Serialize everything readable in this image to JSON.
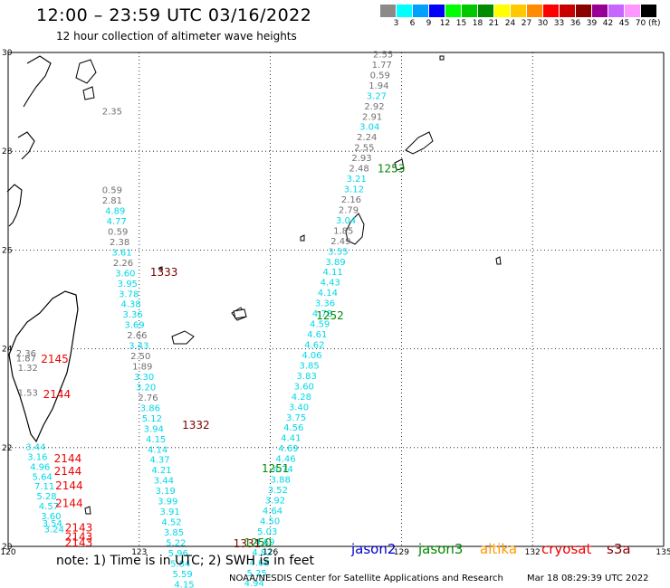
{
  "title": "12:00 – 23:59 UTC 03/16/2022",
  "subtitle": "12 hour collection of altimeter wave heights",
  "scale": {
    "unit": "(ft)",
    "bins": [
      {
        "label": "3",
        "color": "#8a8a8a"
      },
      {
        "label": "6",
        "color": "#00ffff"
      },
      {
        "label": "9",
        "color": "#00a0ff"
      },
      {
        "label": "12",
        "color": "#0000ff"
      },
      {
        "label": "15",
        "color": "#00ff00"
      },
      {
        "label": "18",
        "color": "#00c800"
      },
      {
        "label": "21",
        "color": "#008c00"
      },
      {
        "label": "24",
        "color": "#ffff00"
      },
      {
        "label": "27",
        "color": "#ffc800"
      },
      {
        "label": "30",
        "color": "#ff8c00"
      },
      {
        "label": "33",
        "color": "#ff0000"
      },
      {
        "label": "36",
        "color": "#c80000"
      },
      {
        "label": "39",
        "color": "#8c0000"
      },
      {
        "label": "42",
        "color": "#960096"
      },
      {
        "label": "45",
        "color": "#c864ff"
      },
      {
        "label": "70",
        "color": "#ff96ff"
      },
      {
        "label": "",
        "color": "#000000"
      }
    ]
  },
  "axes": {
    "lon_ticks": [
      "120",
      "123",
      "126",
      "129",
      "132",
      "135"
    ],
    "lat_ticks": [
      "30",
      "28",
      "26",
      "24",
      "22",
      "20"
    ],
    "lon_range": [
      120,
      135
    ],
    "lat_range": [
      20,
      30
    ]
  },
  "colors": {
    "gray": "#707070",
    "cyan": "#00d8e8",
    "red": "#ee0000",
    "darkred": "#7a0000",
    "green": "#008a00"
  },
  "tracks": [
    {
      "name": "west",
      "points": [
        {
          "v": "2.35",
          "lon": 122.15,
          "lat": 28.75,
          "c": "gray"
        },
        {
          "v": "0.59",
          "lon": 122.15,
          "lat": 27.15,
          "c": "gray"
        },
        {
          "v": "2.81",
          "lon": 122.15,
          "lat": 26.94,
          "c": "gray"
        },
        {
          "v": "4.89",
          "lon": 122.22,
          "lat": 26.73,
          "c": "cyan"
        },
        {
          "v": "4.77",
          "lon": 122.25,
          "lat": 26.52,
          "c": "cyan"
        },
        {
          "v": "0.59",
          "lon": 122.28,
          "lat": 26.31,
          "c": "gray"
        },
        {
          "v": "2.38",
          "lon": 122.32,
          "lat": 26.1,
          "c": "gray"
        },
        {
          "v": "3.61",
          "lon": 122.37,
          "lat": 25.89,
          "c": "cyan"
        },
        {
          "v": "2.26",
          "lon": 122.4,
          "lat": 25.68,
          "c": "gray"
        },
        {
          "v": "3.60",
          "lon": 122.45,
          "lat": 25.47,
          "c": "cyan"
        },
        {
          "v": "3.95",
          "lon": 122.5,
          "lat": 25.26,
          "c": "cyan"
        },
        {
          "v": "3.78",
          "lon": 122.53,
          "lat": 25.05,
          "c": "cyan"
        },
        {
          "v": "4.38",
          "lon": 122.58,
          "lat": 24.84,
          "c": "cyan"
        },
        {
          "v": "3.36",
          "lon": 122.62,
          "lat": 24.63,
          "c": "cyan"
        },
        {
          "v": "3.69",
          "lon": 122.66,
          "lat": 24.42,
          "c": "cyan"
        },
        {
          "v": "2.66",
          "lon": 122.72,
          "lat": 24.21,
          "c": "gray"
        },
        {
          "v": "3.43",
          "lon": 122.76,
          "lat": 24.0,
          "c": "cyan"
        },
        {
          "v": "2.50",
          "lon": 122.8,
          "lat": 23.79,
          "c": "gray"
        },
        {
          "v": "1.89",
          "lon": 122.84,
          "lat": 23.58,
          "c": "gray"
        },
        {
          "v": "3.30",
          "lon": 122.88,
          "lat": 23.37,
          "c": "cyan"
        },
        {
          "v": "3.20",
          "lon": 122.92,
          "lat": 23.16,
          "c": "cyan"
        },
        {
          "v": "2.76",
          "lon": 122.97,
          "lat": 22.95,
          "c": "gray"
        },
        {
          "v": "3.86",
          "lon": 123.02,
          "lat": 22.74,
          "c": "cyan"
        },
        {
          "v": "5.12",
          "lon": 123.06,
          "lat": 22.53,
          "c": "cyan"
        },
        {
          "v": "3.94",
          "lon": 123.1,
          "lat": 22.32,
          "c": "cyan"
        },
        {
          "v": "4.15",
          "lon": 123.15,
          "lat": 22.11,
          "c": "cyan"
        },
        {
          "v": "4.14",
          "lon": 123.19,
          "lat": 21.9,
          "c": "cyan"
        },
        {
          "v": "4.37",
          "lon": 123.24,
          "lat": 21.69,
          "c": "cyan"
        },
        {
          "v": "4.21",
          "lon": 123.28,
          "lat": 21.48,
          "c": "cyan"
        },
        {
          "v": "3.44",
          "lon": 123.33,
          "lat": 21.27,
          "c": "cyan"
        },
        {
          "v": "3.19",
          "lon": 123.37,
          "lat": 21.06,
          "c": "cyan"
        },
        {
          "v": "3.99",
          "lon": 123.42,
          "lat": 20.85,
          "c": "cyan"
        },
        {
          "v": "3.91",
          "lon": 123.47,
          "lat": 20.64,
          "c": "cyan"
        },
        {
          "v": "4.52",
          "lon": 123.51,
          "lat": 20.43,
          "c": "cyan"
        },
        {
          "v": "3.85",
          "lon": 123.56,
          "lat": 20.22,
          "c": "cyan"
        },
        {
          "v": "5.22",
          "lon": 123.61,
          "lat": 20.01,
          "c": "cyan"
        },
        {
          "v": "5.96",
          "lon": 123.66,
          "lat": 19.8,
          "c": "cyan"
        },
        {
          "v": "5.84",
          "lon": 123.71,
          "lat": 19.59,
          "c": "cyan"
        },
        {
          "v": "5.59",
          "lon": 123.76,
          "lat": 19.38,
          "c": "cyan"
        },
        {
          "v": "4.15",
          "lon": 123.8,
          "lat": 19.17,
          "c": "cyan"
        }
      ]
    },
    {
      "name": "east",
      "points": [
        {
          "v": "2.55",
          "lon": 128.35,
          "lat": 29.9,
          "c": "gray"
        },
        {
          "v": "1.77",
          "lon": 128.32,
          "lat": 29.69,
          "c": "gray"
        },
        {
          "v": "0.59",
          "lon": 128.28,
          "lat": 29.48,
          "c": "gray"
        },
        {
          "v": "1.94",
          "lon": 128.25,
          "lat": 29.27,
          "c": "gray"
        },
        {
          "v": "3.27",
          "lon": 128.2,
          "lat": 29.06,
          "c": "cyan"
        },
        {
          "v": "2.92",
          "lon": 128.15,
          "lat": 28.85,
          "c": "gray"
        },
        {
          "v": "2.91",
          "lon": 128.1,
          "lat": 28.64,
          "c": "gray"
        },
        {
          "v": "3.04",
          "lon": 128.04,
          "lat": 28.43,
          "c": "cyan"
        },
        {
          "v": "2.24",
          "lon": 127.98,
          "lat": 28.22,
          "c": "gray"
        },
        {
          "v": "2.55",
          "lon": 127.92,
          "lat": 28.01,
          "c": "gray"
        },
        {
          "v": "2.93",
          "lon": 127.86,
          "lat": 27.8,
          "c": "gray"
        },
        {
          "v": "2.48",
          "lon": 127.8,
          "lat": 27.59,
          "c": "gray"
        },
        {
          "v": "3.21",
          "lon": 127.74,
          "lat": 27.38,
          "c": "cyan"
        },
        {
          "v": "3.12",
          "lon": 127.68,
          "lat": 27.17,
          "c": "cyan"
        },
        {
          "v": "2.16",
          "lon": 127.62,
          "lat": 26.96,
          "c": "gray"
        },
        {
          "v": "2.79",
          "lon": 127.56,
          "lat": 26.75,
          "c": "gray"
        },
        {
          "v": "3.04",
          "lon": 127.5,
          "lat": 26.54,
          "c": "cyan"
        },
        {
          "v": "1.85",
          "lon": 127.44,
          "lat": 26.33,
          "c": "gray"
        },
        {
          "v": "2.49",
          "lon": 127.38,
          "lat": 26.12,
          "c": "gray"
        },
        {
          "v": "3.55",
          "lon": 127.32,
          "lat": 25.91,
          "c": "cyan"
        },
        {
          "v": "3.89",
          "lon": 127.26,
          "lat": 25.7,
          "c": "cyan"
        },
        {
          "v": "4.11",
          "lon": 127.2,
          "lat": 25.49,
          "c": "cyan"
        },
        {
          "v": "4.43",
          "lon": 127.14,
          "lat": 25.28,
          "c": "cyan"
        },
        {
          "v": "4.14",
          "lon": 127.08,
          "lat": 25.07,
          "c": "cyan"
        },
        {
          "v": "3.36",
          "lon": 127.02,
          "lat": 24.86,
          "c": "cyan"
        },
        {
          "v": "4.78",
          "lon": 126.96,
          "lat": 24.65,
          "c": "cyan"
        },
        {
          "v": "4.59",
          "lon": 126.9,
          "lat": 24.44,
          "c": "cyan"
        },
        {
          "v": "4.61",
          "lon": 126.84,
          "lat": 24.23,
          "c": "cyan"
        },
        {
          "v": "4.62",
          "lon": 126.78,
          "lat": 24.02,
          "c": "cyan"
        },
        {
          "v": "4.06",
          "lon": 126.72,
          "lat": 23.81,
          "c": "cyan"
        },
        {
          "v": "3.85",
          "lon": 126.66,
          "lat": 23.6,
          "c": "cyan"
        },
        {
          "v": "3.83",
          "lon": 126.6,
          "lat": 23.39,
          "c": "cyan"
        },
        {
          "v": "3.60",
          "lon": 126.54,
          "lat": 23.18,
          "c": "cyan"
        },
        {
          "v": "4.28",
          "lon": 126.48,
          "lat": 22.97,
          "c": "cyan"
        },
        {
          "v": "3.40",
          "lon": 126.42,
          "lat": 22.76,
          "c": "cyan"
        },
        {
          "v": "3.75",
          "lon": 126.36,
          "lat": 22.55,
          "c": "cyan"
        },
        {
          "v": "4.56",
          "lon": 126.3,
          "lat": 22.34,
          "c": "cyan"
        },
        {
          "v": "4.41",
          "lon": 126.24,
          "lat": 22.13,
          "c": "cyan"
        },
        {
          "v": "4.69",
          "lon": 126.18,
          "lat": 21.92,
          "c": "cyan"
        },
        {
          "v": "4.46",
          "lon": 126.12,
          "lat": 21.71,
          "c": "cyan"
        },
        {
          "v": "4.74",
          "lon": 126.06,
          "lat": 21.5,
          "c": "cyan"
        },
        {
          "v": "3.88",
          "lon": 126.0,
          "lat": 21.29,
          "c": "cyan"
        },
        {
          "v": "3.52",
          "lon": 125.94,
          "lat": 21.08,
          "c": "cyan"
        },
        {
          "v": "3.92",
          "lon": 125.88,
          "lat": 20.87,
          "c": "cyan"
        },
        {
          "v": "4.64",
          "lon": 125.82,
          "lat": 20.66,
          "c": "cyan"
        },
        {
          "v": "4.50",
          "lon": 125.76,
          "lat": 20.45,
          "c": "cyan"
        },
        {
          "v": "5.03",
          "lon": 125.7,
          "lat": 20.24,
          "c": "cyan"
        },
        {
          "v": "4.69",
          "lon": 125.64,
          "lat": 20.03,
          "c": "cyan"
        },
        {
          "v": "4.82",
          "lon": 125.58,
          "lat": 19.82,
          "c": "cyan"
        },
        {
          "v": "4.68",
          "lon": 125.52,
          "lat": 19.61,
          "c": "cyan"
        },
        {
          "v": "5.25",
          "lon": 125.46,
          "lat": 19.4,
          "c": "cyan"
        },
        {
          "v": "4.94",
          "lon": 125.4,
          "lat": 19.19,
          "c": "cyan"
        }
      ]
    },
    {
      "name": "taiwan",
      "points": [
        {
          "v": "2.36",
          "lon": 120.18,
          "lat": 23.85,
          "c": "gray"
        },
        {
          "v": "1.87",
          "lon": 120.18,
          "lat": 23.75,
          "c": "gray"
        },
        {
          "v": "1.32",
          "lon": 120.22,
          "lat": 23.55,
          "c": "gray"
        },
        {
          "v": "1.53",
          "lon": 120.22,
          "lat": 23.05,
          "c": "gray"
        },
        {
          "v": "3.44",
          "lon": 120.4,
          "lat": 21.95,
          "c": "cyan"
        },
        {
          "v": "3.16",
          "lon": 120.44,
          "lat": 21.75,
          "c": "cyan"
        },
        {
          "v": "4.96",
          "lon": 120.5,
          "lat": 21.55,
          "c": "cyan"
        },
        {
          "v": "5.64",
          "lon": 120.55,
          "lat": 21.35,
          "c": "cyan"
        },
        {
          "v": "7.11",
          "lon": 120.6,
          "lat": 21.15,
          "c": "cyan"
        },
        {
          "v": "5.28",
          "lon": 120.65,
          "lat": 20.95,
          "c": "cyan"
        },
        {
          "v": "4.57",
          "lon": 120.7,
          "lat": 20.75,
          "c": "cyan"
        },
        {
          "v": "3.60",
          "lon": 120.75,
          "lat": 20.55,
          "c": "cyan"
        },
        {
          "v": "3.54",
          "lon": 120.78,
          "lat": 20.4,
          "c": "cyan"
        },
        {
          "v": "3.24",
          "lon": 120.82,
          "lat": 20.28,
          "c": "cyan"
        }
      ]
    }
  ],
  "ids": [
    {
      "v": "1333",
      "lon": 123.25,
      "lat": 25.48,
      "c": "darkred"
    },
    {
      "v": "2145",
      "lon": 120.75,
      "lat": 23.72,
      "c": "red"
    },
    {
      "v": "2144",
      "lon": 120.8,
      "lat": 23.0,
      "c": "red"
    },
    {
      "v": "1332",
      "lon": 123.98,
      "lat": 22.38,
      "c": "darkred"
    },
    {
      "v": "1253",
      "lon": 128.45,
      "lat": 27.57,
      "c": "green"
    },
    {
      "v": "1252",
      "lon": 127.05,
      "lat": 24.6,
      "c": "green"
    },
    {
      "v": "1251",
      "lon": 125.8,
      "lat": 21.5,
      "c": "green"
    },
    {
      "v": "2144",
      "lon": 121.05,
      "lat": 21.7,
      "c": "red"
    },
    {
      "v": "2144",
      "lon": 121.05,
      "lat": 21.45,
      "c": "red"
    },
    {
      "v": "2144",
      "lon": 121.08,
      "lat": 21.15,
      "c": "red"
    },
    {
      "v": "2144",
      "lon": 121.08,
      "lat": 20.8,
      "c": "red"
    },
    {
      "v": "2143",
      "lon": 121.3,
      "lat": 20.3,
      "c": "red"
    },
    {
      "v": "2143",
      "lon": 121.3,
      "lat": 20.12,
      "c": "red"
    },
    {
      "v": "2143",
      "lon": 121.3,
      "lat": 20.0,
      "c": "red"
    },
    {
      "v": "1331",
      "lon": 125.15,
      "lat": 19.98,
      "c": "darkred"
    },
    {
      "v": "1250",
      "lon": 125.4,
      "lat": 20.0,
      "c": "green"
    }
  ],
  "note": "note:  1) Time is in UTC;  2) SWH is in feet",
  "satellites": [
    {
      "name": "jason2",
      "color": "#0000cc"
    },
    {
      "name": "jason3",
      "color": "#008a00"
    },
    {
      "name": "altika",
      "color": "#ff9900"
    },
    {
      "name": "cryosat",
      "color": "#ee0000"
    },
    {
      "name": "s3a",
      "color": "#8a0000"
    }
  ],
  "credit": "NOAA/NESDIS Center for Satellite Applications and Research",
  "generated": "Mar 18 08:29:39 UTC 2022"
}
